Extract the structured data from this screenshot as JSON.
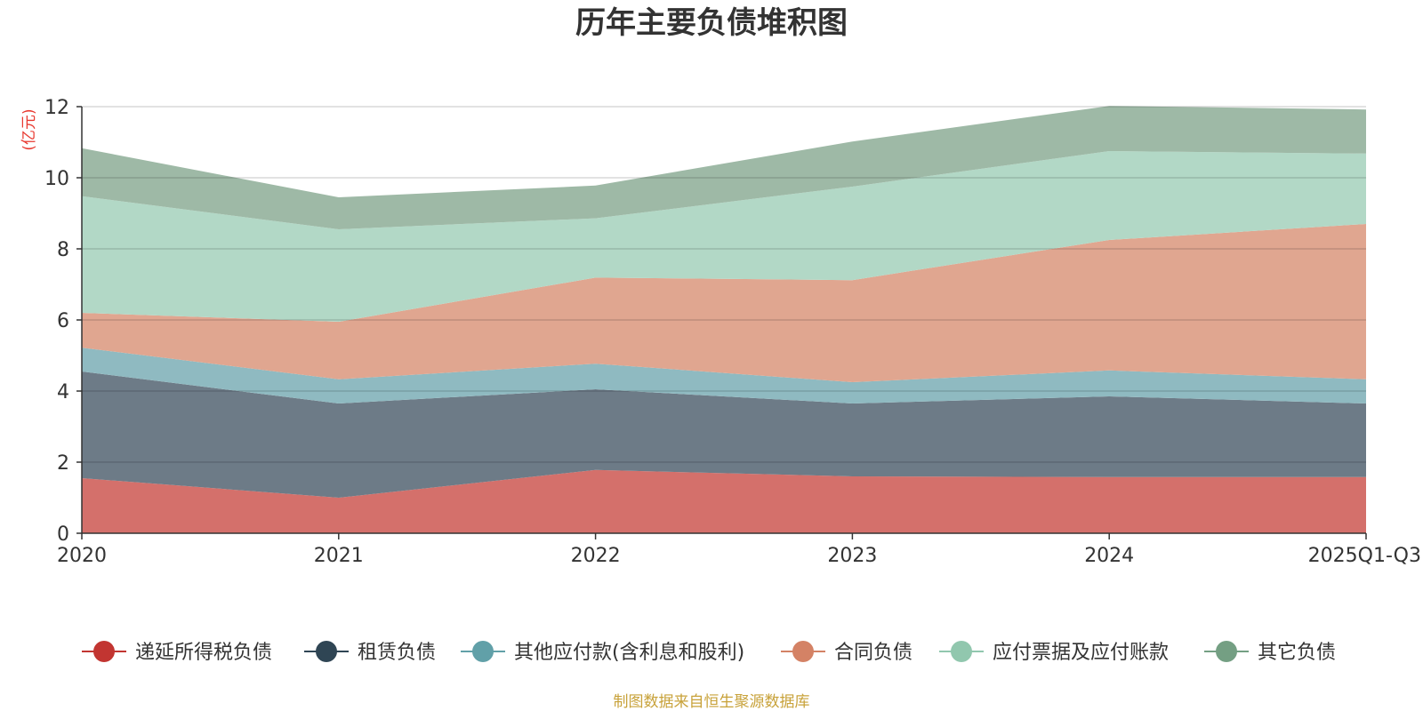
{
  "chart_data": {
    "type": "area",
    "stacked": true,
    "title": "历年主要负债堆积图",
    "unit": "(亿元)",
    "categories": [
      "2020",
      "2021",
      "2022",
      "2023",
      "2024",
      "2025Q1-Q3"
    ],
    "ylim": [
      0,
      12
    ],
    "yticks": [
      0,
      2,
      4,
      6,
      8,
      10,
      12
    ],
    "grid": true,
    "legend_position": "bottom",
    "series": [
      {
        "name": "递延所得税负债",
        "values": [
          1.55,
          1.0,
          1.78,
          1.6,
          1.58,
          1.58
        ],
        "fill": "#d4706b",
        "marker": "#c23531"
      },
      {
        "name": "租赁负债",
        "values": [
          3.0,
          2.65,
          2.27,
          2.05,
          2.27,
          2.07
        ],
        "fill": "#6d7b87",
        "marker": "#2f4554"
      },
      {
        "name": "其他应付款(含利息和股利)",
        "values": [
          0.67,
          0.68,
          0.72,
          0.6,
          0.73,
          0.68
        ],
        "fill": "#8fbac1",
        "marker": "#61a0a8"
      },
      {
        "name": "合同负债",
        "values": [
          0.98,
          1.62,
          2.42,
          2.87,
          3.67,
          4.37
        ],
        "fill": "#e0a690",
        "marker": "#d48265"
      },
      {
        "name": "应付票据及应付账款",
        "values": [
          3.28,
          2.6,
          1.67,
          2.63,
          2.5,
          1.98
        ],
        "fill": "#b2d8c6",
        "marker": "#91c7ae"
      },
      {
        "name": "其它负债",
        "values": [
          1.35,
          0.9,
          0.92,
          1.27,
          1.27,
          1.24
        ],
        "fill": "#9eb9a6",
        "marker": "#749f83"
      }
    ],
    "source_note": "制图数据来自恒生聚源数据库"
  }
}
